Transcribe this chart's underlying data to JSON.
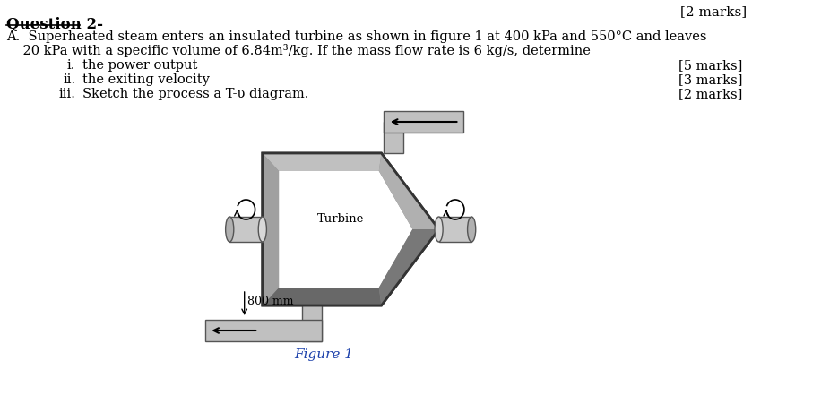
{
  "title_top_right": "[2 marks]",
  "question_header": "Question 2-",
  "line_A": "A.  Superheated steam enters an insulated turbine as shown in figure 1 at 400 kPa and 550°C and leaves",
  "line_B": "    20 kPa with a specific volume of 6.84m³/kg. If the mass flow rate is 6 kg/s, determine",
  "items": [
    {
      "roman": "i.",
      "text": "the power output",
      "marks": "[5 marks]"
    },
    {
      "roman": "ii.",
      "text": "the exiting velocity",
      "marks": "[3 marks]"
    },
    {
      "roman": "iii.",
      "text": "Sketch the process a T-υ diagram.",
      "marks": "[2 marks]"
    }
  ],
  "figure_label": "Figure 1",
  "turbine_label": "Turbine",
  "dimension_label": "800 mm",
  "bg_color": "#ffffff",
  "text_color": "#000000",
  "figure_label_color": "#1a3faa"
}
